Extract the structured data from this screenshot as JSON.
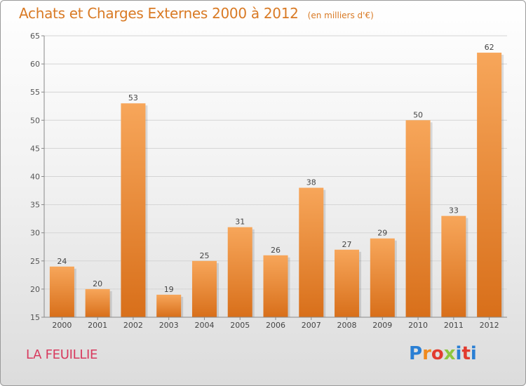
{
  "header": {
    "title": "Achats et Charges Externes 2000 à 2012",
    "subtitle": "(en milliers d'€)"
  },
  "footer": {
    "commune": "LA FEUILLIE",
    "logo": "Proxiti"
  },
  "colors": {
    "title": "#d97a24",
    "commune": "#d83a5e",
    "bar_top": "#f7a65a",
    "bar_bottom": "#d86f1a",
    "logo": [
      "#2a7fd4",
      "#f08a1e",
      "#e23b2f",
      "#8dc63f",
      "#2a7fd4",
      "#e23b2f",
      "#2a7fd4"
    ]
  },
  "chart_data": {
    "type": "bar",
    "categories": [
      "2000",
      "2001",
      "2002",
      "2003",
      "2004",
      "2005",
      "2006",
      "2007",
      "2008",
      "2009",
      "2010",
      "2011",
      "2012"
    ],
    "values": [
      24,
      20,
      53,
      19,
      25,
      31,
      26,
      38,
      27,
      29,
      50,
      33,
      62
    ],
    "title": "Achats et Charges Externes 2000 à 2012",
    "unit": "(en milliers d'€)",
    "xlabel": "",
    "ylabel": "",
    "ylim": [
      15,
      65
    ],
    "yticks": [
      15,
      20,
      25,
      30,
      35,
      40,
      45,
      50,
      55,
      60,
      65
    ],
    "grid": true
  }
}
